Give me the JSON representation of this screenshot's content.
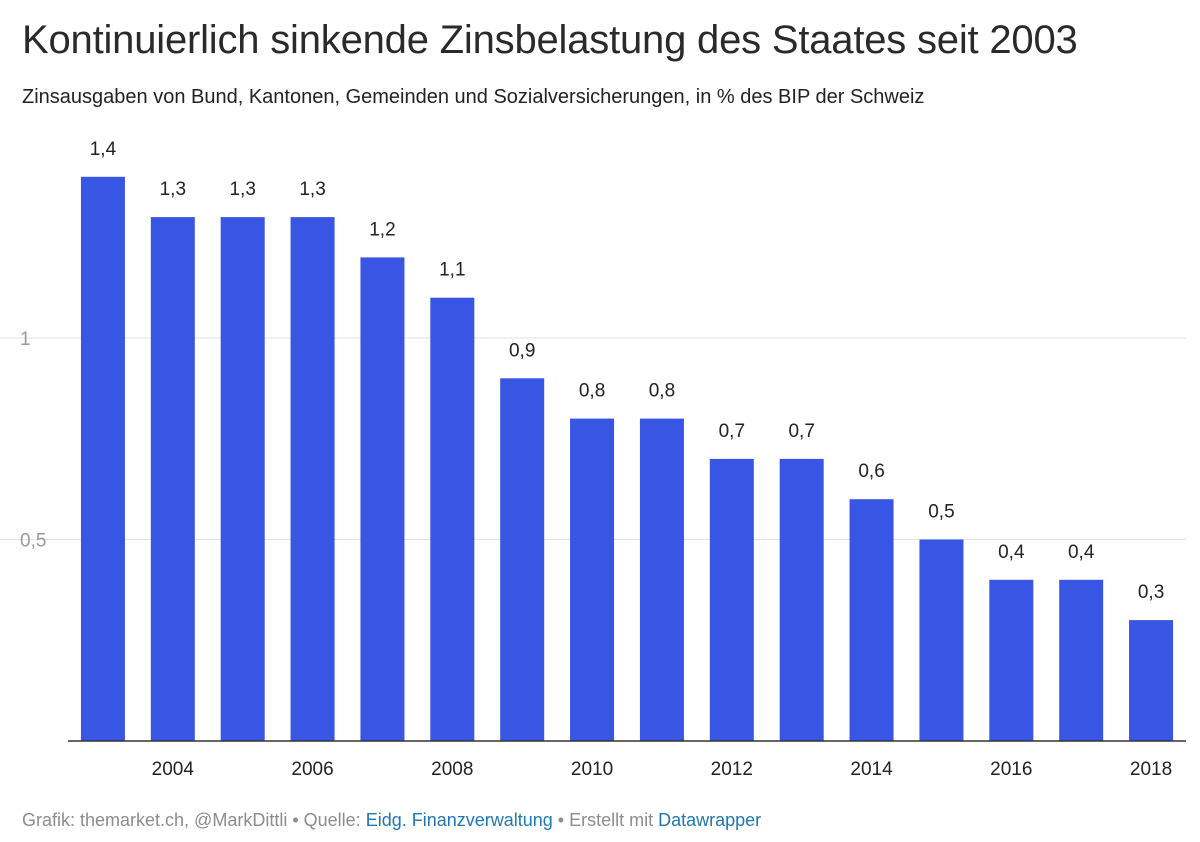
{
  "title": "Kontinuierlich sinkende Zinsbelastung des Staates seit 2003",
  "subtitle": "Zinsausgaben von Bund, Kantonen, Gemeinden und Sozialversicherungen, in % des BIP der Schweiz",
  "footer": {
    "credit": "Grafik: themarket.ch, @MarkDittli",
    "sep1": " • ",
    "source_label": "Quelle: ",
    "source_link": "Eidg. Finanzverwaltung",
    "sep2": " • ",
    "made_label": "Erstellt mit ",
    "made_link": "Datawrapper"
  },
  "colors": {
    "bar": "#3955e3",
    "grid": "#e2e2e2",
    "axis": "#333333",
    "tick_y": "#9a9a9a",
    "link": "#1f77b4"
  },
  "chart_data": {
    "type": "bar",
    "categories": [
      "2003",
      "2004",
      "2005",
      "2006",
      "2007",
      "2008",
      "2009",
      "2010",
      "2011",
      "2012",
      "2013",
      "2014",
      "2015",
      "2016",
      "2017",
      "2018"
    ],
    "values": [
      1.4,
      1.3,
      1.3,
      1.3,
      1.2,
      1.1,
      0.9,
      0.8,
      0.8,
      0.7,
      0.7,
      0.6,
      0.5,
      0.4,
      0.4,
      0.3
    ],
    "value_labels": [
      "1,4",
      "1,3",
      "1,3",
      "1,3",
      "1,2",
      "1,1",
      "0,9",
      "0,8",
      "0,8",
      "0,7",
      "0,7",
      "0,6",
      "0,5",
      "0,4",
      "0,4",
      "0,3"
    ],
    "x_tick_labels": [
      "2004",
      "2006",
      "2008",
      "2010",
      "2012",
      "2014",
      "2016",
      "2018"
    ],
    "y_ticks": [
      0.5,
      1
    ],
    "y_tick_labels": [
      "0,5",
      "1"
    ],
    "ylim": [
      0,
      1.4
    ],
    "grid": true,
    "legend": "none"
  }
}
